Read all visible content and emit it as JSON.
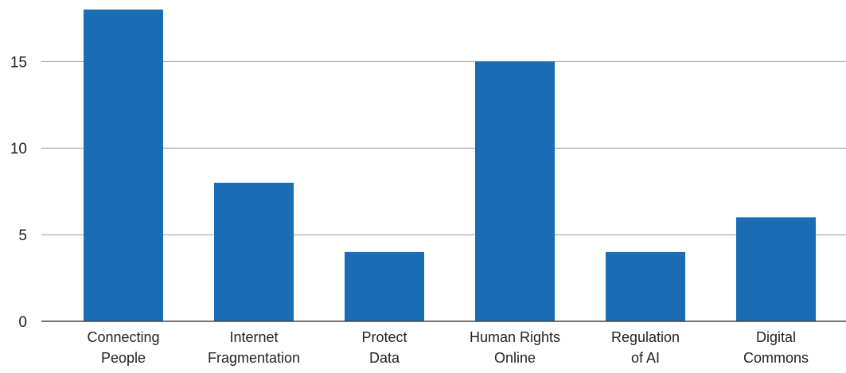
{
  "chart_data": {
    "type": "bar",
    "title": "",
    "xlabel": "",
    "ylabel": "",
    "categories": [
      [
        "Connecting",
        "People"
      ],
      [
        "Internet",
        "Fragmentation"
      ],
      [
        "Protect",
        "Data"
      ],
      [
        "Human Rights",
        "Online"
      ],
      [
        "Regulation",
        "of AI"
      ],
      [
        "Digital",
        "Commons"
      ]
    ],
    "values": [
      18,
      8,
      4,
      15,
      4,
      6
    ],
    "ylim": [
      0,
      18
    ],
    "yticks": [
      0,
      5,
      10,
      15
    ],
    "grid": true,
    "legend": "none",
    "colors": {
      "bar": "#1a6cb5",
      "grid": "#9a9a9a",
      "axis": "#444444",
      "text": "#222222"
    }
  }
}
